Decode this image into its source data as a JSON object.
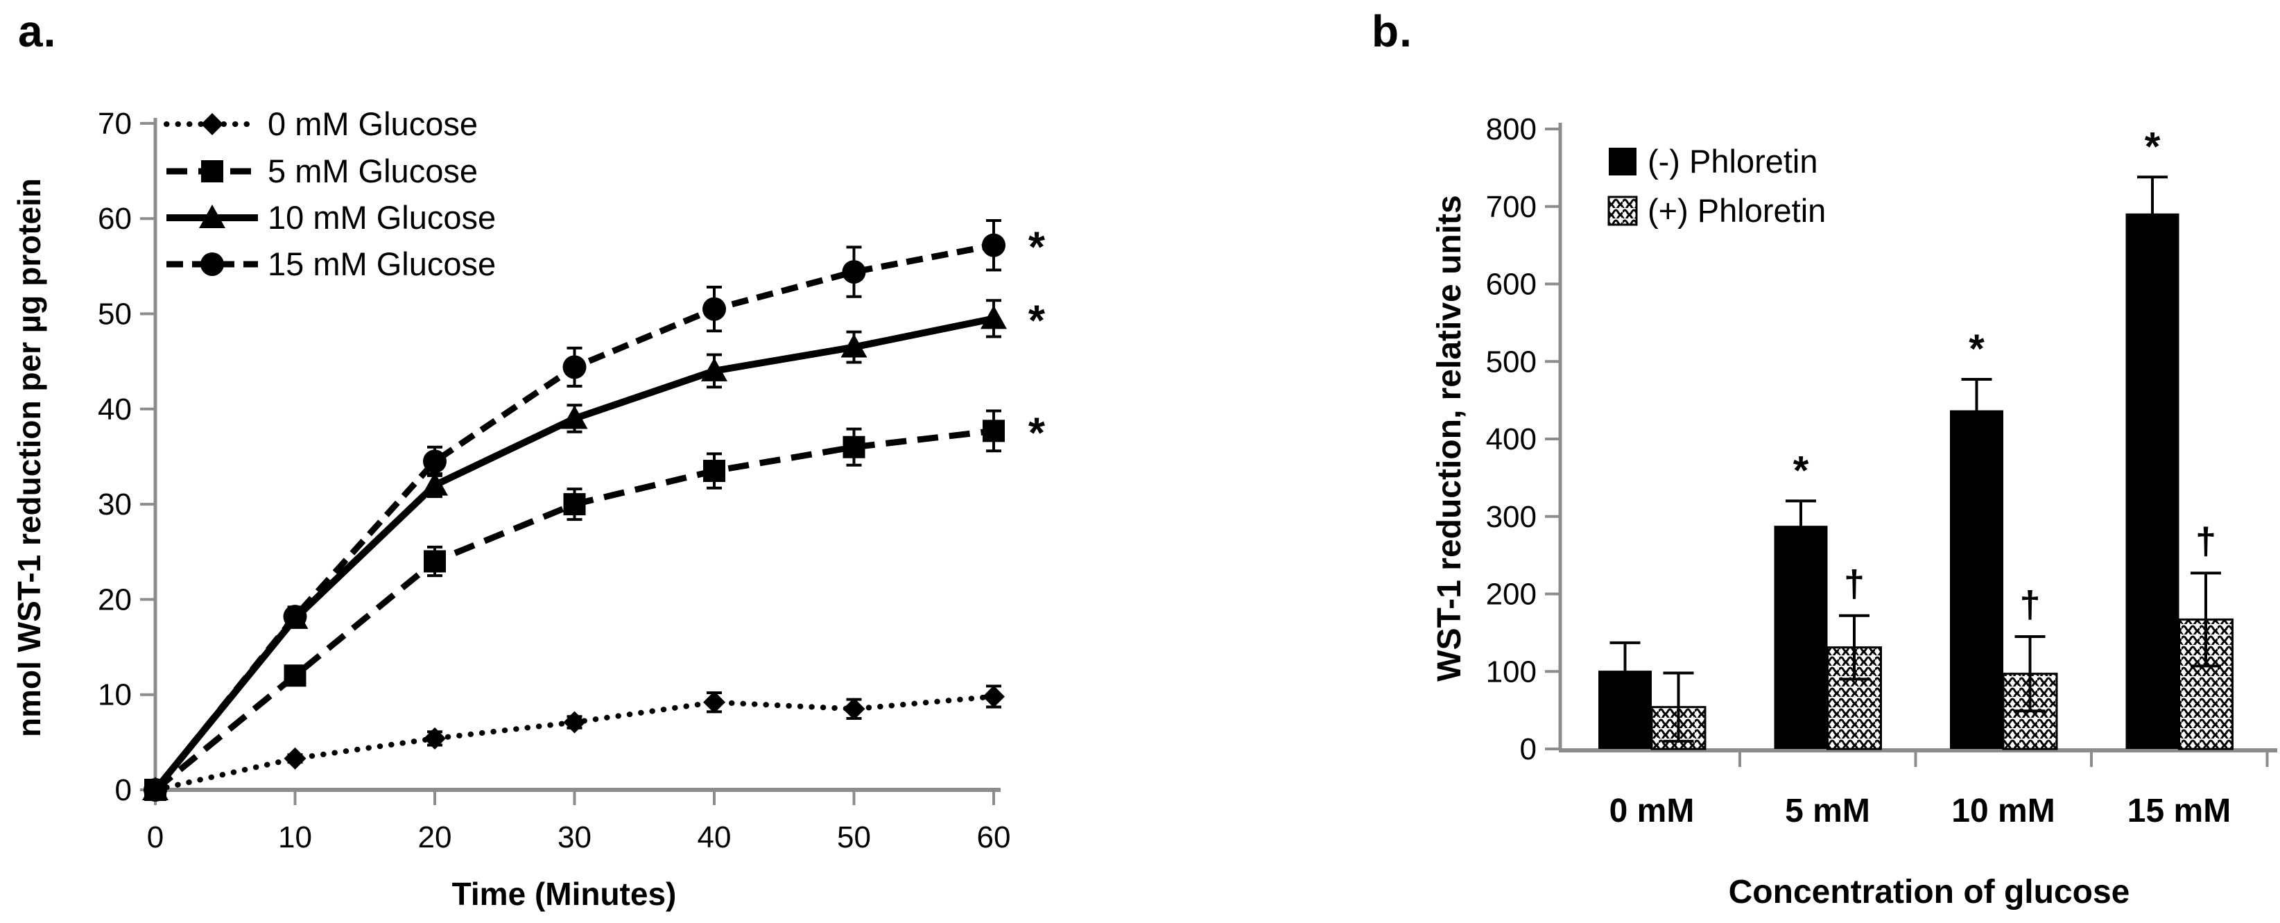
{
  "figure": {
    "background": "#ffffff",
    "ink_color": "#000000",
    "axis_color": "#8c8c8c"
  },
  "chart_data": [
    {
      "type": "line",
      "panel_label": "a.",
      "x": [
        0,
        10,
        20,
        30,
        40,
        50,
        60
      ],
      "xlabel": "Time (Minutes)",
      "ylabel": "nmol WST-1 reduction per µg protein",
      "ylim": [
        0,
        70
      ],
      "ytick_step": 10,
      "xticks": [
        "0",
        "10",
        "20",
        "30",
        "40",
        "50",
        "60"
      ],
      "yticks": [
        "0",
        "10",
        "20",
        "30",
        "40",
        "50",
        "60",
        "70"
      ],
      "grid": "off",
      "legend_position": "top-left-inside",
      "series": [
        {
          "name": "0 mM Glucose",
          "marker": "diamond",
          "line_style": "dotted",
          "values": [
            0,
            3.3,
            5.4,
            7.1,
            9.2,
            8.5,
            9.8
          ],
          "errors": [
            0,
            0.4,
            0.7,
            0.6,
            1.0,
            1.0,
            1.1
          ],
          "sig_last": ""
        },
        {
          "name": "5 mM Glucose",
          "marker": "square",
          "line_style": "dashed",
          "values": [
            0,
            12,
            24,
            30,
            33.5,
            36,
            37.7
          ],
          "errors": [
            0,
            1.0,
            1.5,
            1.6,
            1.8,
            1.9,
            2.1
          ],
          "sig_last": "*"
        },
        {
          "name": "10 mM Glucose",
          "marker": "triangle",
          "line_style": "solid",
          "values": [
            0,
            18,
            32,
            39,
            44,
            46.5,
            49.5
          ],
          "errors": [
            0,
            0.8,
            1.2,
            1.4,
            1.7,
            1.6,
            1.9
          ],
          "sig_last": "*"
        },
        {
          "name": "15 mM Glucose",
          "marker": "circle",
          "line_style": "dashed-long",
          "values": [
            0,
            18.2,
            34.5,
            44.4,
            50.5,
            54.4,
            57.2
          ],
          "errors": [
            0,
            1.0,
            1.5,
            2.0,
            2.3,
            2.6,
            2.6
          ],
          "sig_last": "*"
        }
      ]
    },
    {
      "type": "bar",
      "panel_label": "b.",
      "categories": [
        "0 mM",
        "5 mM",
        "10 mM",
        "15 mM"
      ],
      "xlabel": "Concentration of glucose",
      "ylabel": "WST-1 reduction, relative units",
      "ylim": [
        0,
        800
      ],
      "ytick_step": 100,
      "yticks": [
        "0",
        "100",
        "200",
        "300",
        "400",
        "500",
        "600",
        "700",
        "800"
      ],
      "grid": "off",
      "legend_position": "top-left-inside",
      "series": [
        {
          "name": "(-) Phloretin",
          "fill": "solid-black",
          "values": [
            101,
            288,
            437,
            691
          ],
          "errors": [
            36,
            32,
            40,
            47
          ],
          "sig": [
            "",
            "*",
            "*",
            "*"
          ]
        },
        {
          "name": "(+) Phloretin",
          "fill": "wave-pattern",
          "values": [
            54,
            131,
            97,
            167
          ],
          "errors": [
            44,
            41,
            48,
            60
          ],
          "sig": [
            "",
            "†",
            "†",
            "†"
          ]
        }
      ]
    }
  ]
}
